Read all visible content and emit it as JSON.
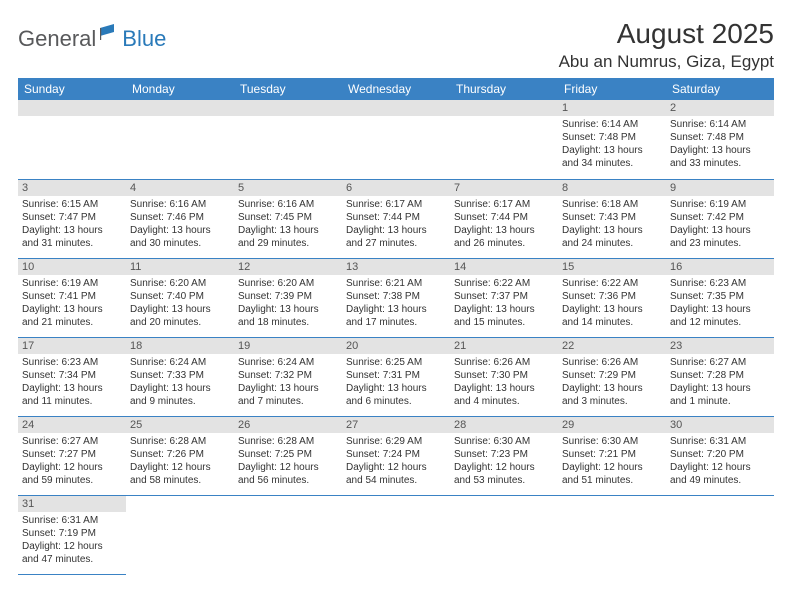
{
  "logo": {
    "general": "General",
    "blue": "Blue"
  },
  "title": "August 2025",
  "location": "Abu an Numrus, Giza, Egypt",
  "colors": {
    "header_bg": "#3a82c4",
    "header_text": "#ffffff",
    "daynum_bg": "#e3e3e3",
    "row_border": "#3a82c4",
    "logo_gray": "#58595b",
    "logo_blue": "#2a7ab9"
  },
  "weekdays": [
    "Sunday",
    "Monday",
    "Tuesday",
    "Wednesday",
    "Thursday",
    "Friday",
    "Saturday"
  ],
  "layout": {
    "first_weekday_index": 5,
    "days_in_month": 31,
    "rows": 6,
    "cols": 7
  },
  "days": {
    "1": {
      "sunrise": "6:14 AM",
      "sunset": "7:48 PM",
      "daylight": "13 hours and 34 minutes."
    },
    "2": {
      "sunrise": "6:14 AM",
      "sunset": "7:48 PM",
      "daylight": "13 hours and 33 minutes."
    },
    "3": {
      "sunrise": "6:15 AM",
      "sunset": "7:47 PM",
      "daylight": "13 hours and 31 minutes."
    },
    "4": {
      "sunrise": "6:16 AM",
      "sunset": "7:46 PM",
      "daylight": "13 hours and 30 minutes."
    },
    "5": {
      "sunrise": "6:16 AM",
      "sunset": "7:45 PM",
      "daylight": "13 hours and 29 minutes."
    },
    "6": {
      "sunrise": "6:17 AM",
      "sunset": "7:44 PM",
      "daylight": "13 hours and 27 minutes."
    },
    "7": {
      "sunrise": "6:17 AM",
      "sunset": "7:44 PM",
      "daylight": "13 hours and 26 minutes."
    },
    "8": {
      "sunrise": "6:18 AM",
      "sunset": "7:43 PM",
      "daylight": "13 hours and 24 minutes."
    },
    "9": {
      "sunrise": "6:19 AM",
      "sunset": "7:42 PM",
      "daylight": "13 hours and 23 minutes."
    },
    "10": {
      "sunrise": "6:19 AM",
      "sunset": "7:41 PM",
      "daylight": "13 hours and 21 minutes."
    },
    "11": {
      "sunrise": "6:20 AM",
      "sunset": "7:40 PM",
      "daylight": "13 hours and 20 minutes."
    },
    "12": {
      "sunrise": "6:20 AM",
      "sunset": "7:39 PM",
      "daylight": "13 hours and 18 minutes."
    },
    "13": {
      "sunrise": "6:21 AM",
      "sunset": "7:38 PM",
      "daylight": "13 hours and 17 minutes."
    },
    "14": {
      "sunrise": "6:22 AM",
      "sunset": "7:37 PM",
      "daylight": "13 hours and 15 minutes."
    },
    "15": {
      "sunrise": "6:22 AM",
      "sunset": "7:36 PM",
      "daylight": "13 hours and 14 minutes."
    },
    "16": {
      "sunrise": "6:23 AM",
      "sunset": "7:35 PM",
      "daylight": "13 hours and 12 minutes."
    },
    "17": {
      "sunrise": "6:23 AM",
      "sunset": "7:34 PM",
      "daylight": "13 hours and 11 minutes."
    },
    "18": {
      "sunrise": "6:24 AM",
      "sunset": "7:33 PM",
      "daylight": "13 hours and 9 minutes."
    },
    "19": {
      "sunrise": "6:24 AM",
      "sunset": "7:32 PM",
      "daylight": "13 hours and 7 minutes."
    },
    "20": {
      "sunrise": "6:25 AM",
      "sunset": "7:31 PM",
      "daylight": "13 hours and 6 minutes."
    },
    "21": {
      "sunrise": "6:26 AM",
      "sunset": "7:30 PM",
      "daylight": "13 hours and 4 minutes."
    },
    "22": {
      "sunrise": "6:26 AM",
      "sunset": "7:29 PM",
      "daylight": "13 hours and 3 minutes."
    },
    "23": {
      "sunrise": "6:27 AM",
      "sunset": "7:28 PM",
      "daylight": "13 hours and 1 minute."
    },
    "24": {
      "sunrise": "6:27 AM",
      "sunset": "7:27 PM",
      "daylight": "12 hours and 59 minutes."
    },
    "25": {
      "sunrise": "6:28 AM",
      "sunset": "7:26 PM",
      "daylight": "12 hours and 58 minutes."
    },
    "26": {
      "sunrise": "6:28 AM",
      "sunset": "7:25 PM",
      "daylight": "12 hours and 56 minutes."
    },
    "27": {
      "sunrise": "6:29 AM",
      "sunset": "7:24 PM",
      "daylight": "12 hours and 54 minutes."
    },
    "28": {
      "sunrise": "6:30 AM",
      "sunset": "7:23 PM",
      "daylight": "12 hours and 53 minutes."
    },
    "29": {
      "sunrise": "6:30 AM",
      "sunset": "7:21 PM",
      "daylight": "12 hours and 51 minutes."
    },
    "30": {
      "sunrise": "6:31 AM",
      "sunset": "7:20 PM",
      "daylight": "12 hours and 49 minutes."
    },
    "31": {
      "sunrise": "6:31 AM",
      "sunset": "7:19 PM",
      "daylight": "12 hours and 47 minutes."
    }
  },
  "labels": {
    "sunrise": "Sunrise: ",
    "sunset": "Sunset: ",
    "daylight": "Daylight: "
  },
  "typography": {
    "title_fontsize": 28,
    "location_fontsize": 17,
    "weekday_fontsize": 12,
    "daynum_fontsize": 11,
    "cell_fontsize": 10
  }
}
